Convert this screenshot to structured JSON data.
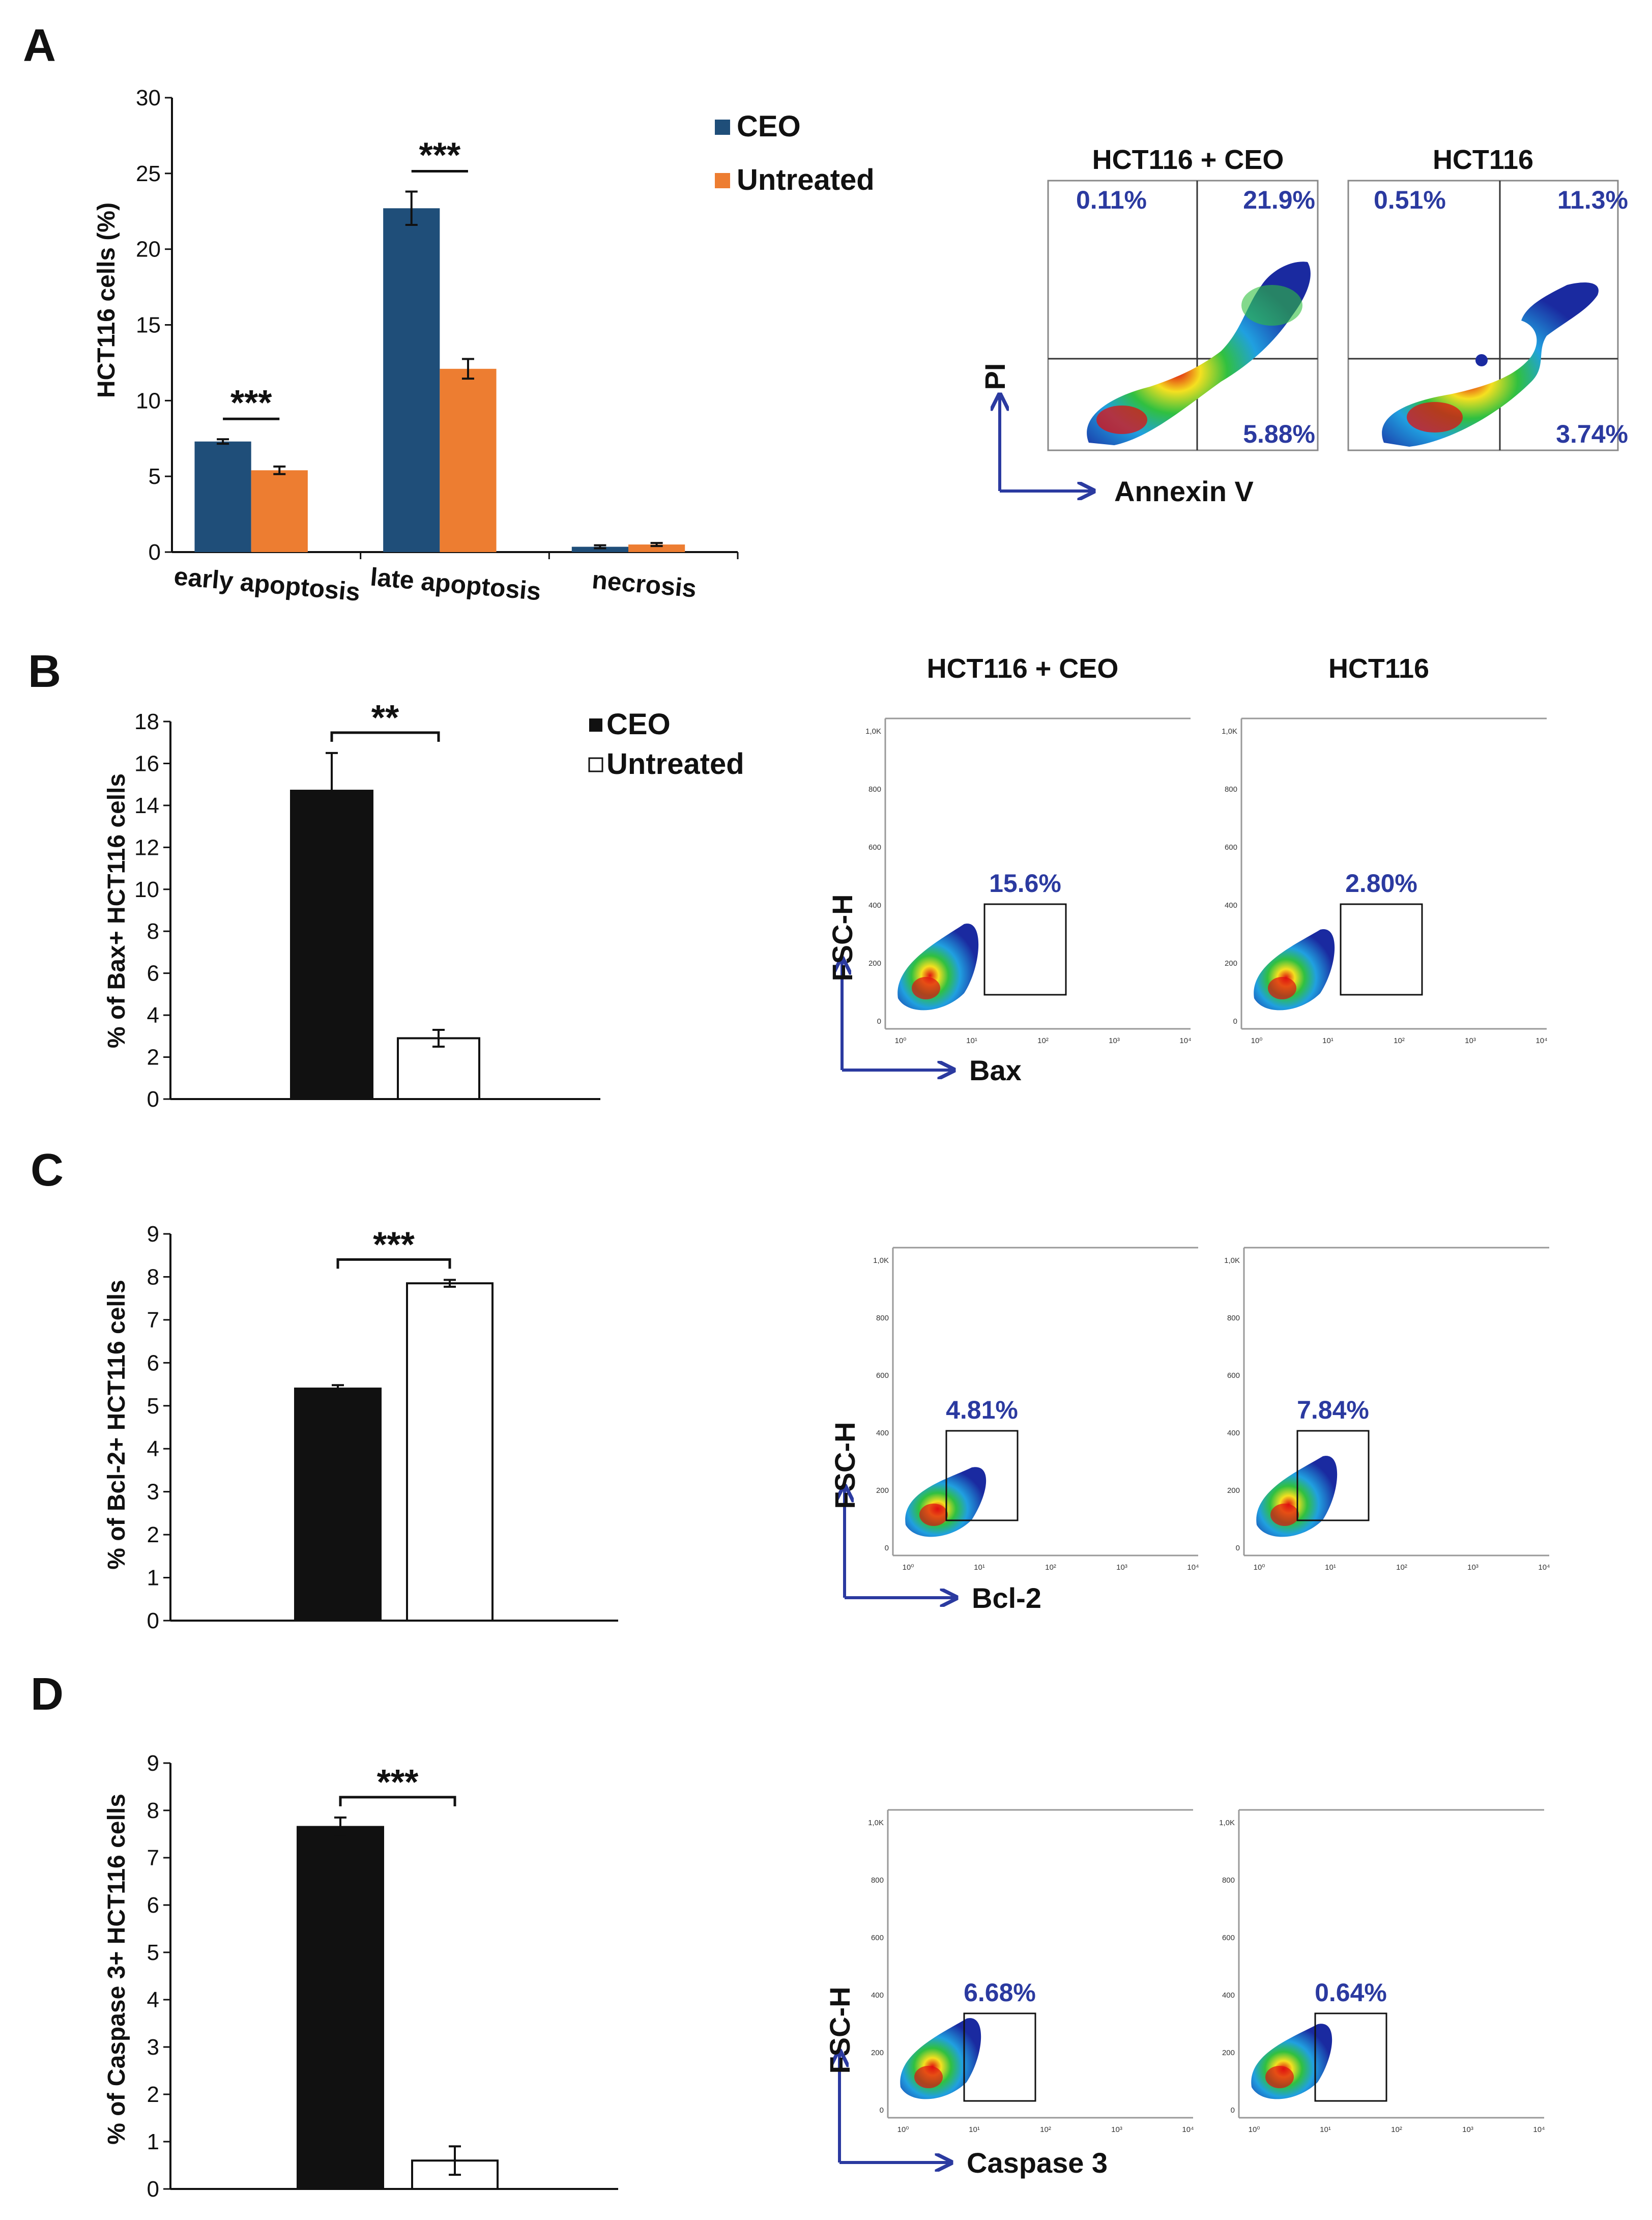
{
  "panels": [
    {
      "letter": "A",
      "chart": {
        "type": "bar",
        "categories": [
          "early apoptosis",
          "late apoptosis",
          "necrosis"
        ],
        "series": [
          {
            "name": "CEO",
            "values": [
              7.3,
              22.7,
              0.35
            ],
            "errors": [
              0.15,
              1.1,
              0.1
            ],
            "color": "#1f4e79"
          },
          {
            "name": "Untreated",
            "values": [
              5.4,
              12.1,
              0.5
            ],
            "errors": [
              0.25,
              0.65,
              0.1
            ],
            "color": "#ed7d31"
          }
        ],
        "ylabel": "HCT116 cells (%)",
        "ylim": [
          0,
          30
        ],
        "yticks": [
          0,
          5,
          10,
          15,
          20,
          25,
          30
        ],
        "significance": [
          "***",
          "***",
          ""
        ]
      },
      "flow": {
        "plots": [
          {
            "title": "HCT116 + CEO",
            "quadrants": [
              "0.11%",
              "21.9%",
              "5.88%"
            ]
          },
          {
            "title": "HCT116",
            "quadrants": [
              "0.51%",
              "11.3%",
              "3.74%"
            ]
          }
        ],
        "x_axis": "Annexin V",
        "y_axis": "PI"
      }
    },
    {
      "letter": "B",
      "chart": {
        "type": "bar",
        "categories": [
          "CEO",
          "Untreated"
        ],
        "values": [
          14.7,
          2.9
        ],
        "errors": [
          1.8,
          0.4
        ],
        "colors": [
          "#111111",
          "#ffffff"
        ],
        "ylabel": "% of Bax+ HCT116 cells",
        "ylim": [
          0,
          18
        ],
        "yticks": [
          0,
          2,
          4,
          6,
          8,
          10,
          12,
          14,
          16,
          18
        ],
        "significance": "**"
      },
      "legend": [
        "CEO",
        "Untreated"
      ],
      "flow": {
        "plots": [
          {
            "title": "HCT116 + CEO",
            "gate": "15.6%"
          },
          {
            "title": "HCT116",
            "gate": "2.80%"
          }
        ],
        "x_axis": "Bax",
        "y_axis": "FSC-H"
      }
    },
    {
      "letter": "C",
      "chart": {
        "type": "bar",
        "categories": [
          "CEO",
          "Untreated"
        ],
        "values": [
          5.4,
          7.85
        ],
        "errors": [
          0.08,
          0.08
        ],
        "colors": [
          "#111111",
          "#ffffff"
        ],
        "ylabel": "% of Bcl-2+ HCT116 cells",
        "ylim": [
          0,
          9
        ],
        "yticks": [
          0,
          1,
          2,
          3,
          4,
          5,
          6,
          7,
          8,
          9
        ],
        "significance": "***"
      },
      "flow": {
        "plots": [
          {
            "title": "",
            "gate": "4.81%"
          },
          {
            "title": "",
            "gate": "7.84%"
          }
        ],
        "x_axis": "Bcl-2",
        "y_axis": "FSC-H"
      }
    },
    {
      "letter": "D",
      "chart": {
        "type": "bar",
        "categories": [
          "CEO",
          "Untreated"
        ],
        "values": [
          7.65,
          0.6
        ],
        "errors": [
          0.2,
          0.3
        ],
        "colors": [
          "#111111",
          "#ffffff"
        ],
        "ylabel": "% of Caspase 3+ HCT116 cells",
        "ylim": [
          0,
          9
        ],
        "yticks": [
          0,
          1,
          2,
          3,
          4,
          5,
          6,
          7,
          8,
          9
        ],
        "significance": "***"
      },
      "flow": {
        "plots": [
          {
            "title": "",
            "gate": "6.68%"
          },
          {
            "title": "",
            "gate": "0.64%"
          }
        ],
        "x_axis": "Caspase 3",
        "y_axis": "FSC-H"
      }
    }
  ],
  "flow_ticks": {
    "log_x": [
      "10⁰",
      "10¹",
      "10²",
      "10³",
      "10⁴"
    ],
    "fsc_y": [
      "0",
      "200",
      "400",
      "600",
      "800",
      "1,0K"
    ]
  }
}
